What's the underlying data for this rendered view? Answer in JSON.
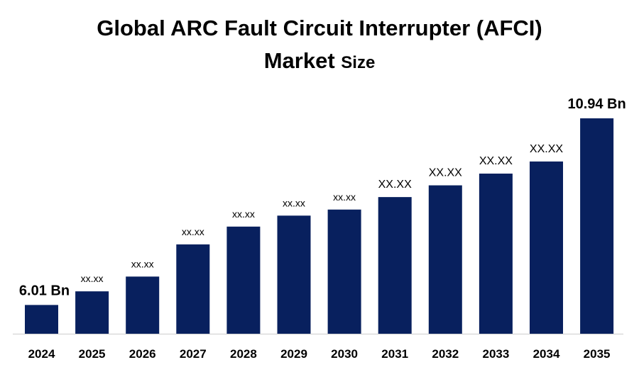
{
  "chart_data": {
    "type": "bar",
    "title_main": "Global ARC Fault Circuit Interrupter (AFCI)",
    "title_line2_a": "Market",
    "title_line2_b": "Size",
    "xlabel": "",
    "ylabel": "",
    "categories": [
      "2024",
      "2025",
      "2026",
      "2027",
      "2028",
      "2029",
      "2030",
      "2031",
      "2032",
      "2033",
      "2034",
      "2035"
    ],
    "values": [
      6.01,
      6.37,
      6.76,
      7.61,
      8.08,
      8.37,
      8.53,
      8.86,
      9.17,
      9.48,
      9.8,
      10.94
    ],
    "labels": [
      "6.01 Bn",
      "xx.xx",
      "xx.xx",
      "xx.xx",
      "xx.xx",
      "xx.xx",
      "xx.xx",
      "XX.XX",
      "XX.XX",
      "XX.XX",
      "XX.XX",
      "10.94 Bn"
    ],
    "ylim": [
      5.25,
      11.3
    ],
    "grid": false,
    "bar_color": "#08205e"
  }
}
